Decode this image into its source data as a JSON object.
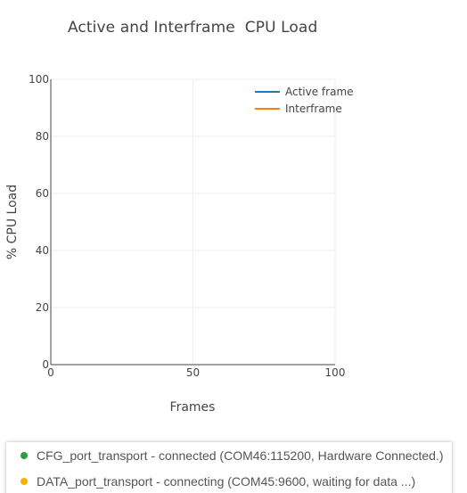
{
  "chart_data": {
    "type": "line",
    "title": "Active and Interframe  CPU Load",
    "xlabel": "Frames",
    "ylabel": "% CPU Load",
    "xlim": [
      0,
      100
    ],
    "ylim": [
      0,
      100
    ],
    "x_ticks": [
      0,
      50,
      100
    ],
    "y_ticks": [
      0,
      20,
      40,
      60,
      80,
      100
    ],
    "grid": true,
    "legend_position": "top-right",
    "series": [
      {
        "name": "Active frame",
        "color": "#1f77b4",
        "x": [],
        "y": []
      },
      {
        "name": "Interframe",
        "color": "#ff7f0e",
        "x": [],
        "y": []
      }
    ]
  },
  "status": {
    "items": [
      {
        "text": "CFG_port_transport - connected (COM46:115200, Hardware Connected.)",
        "color": "#2e9e3e",
        "state": "connected"
      },
      {
        "text": "DATA_port_transport - connecting (COM45:9600, waiting for data ...)",
        "color": "#f0b400",
        "state": "connecting"
      }
    ]
  }
}
